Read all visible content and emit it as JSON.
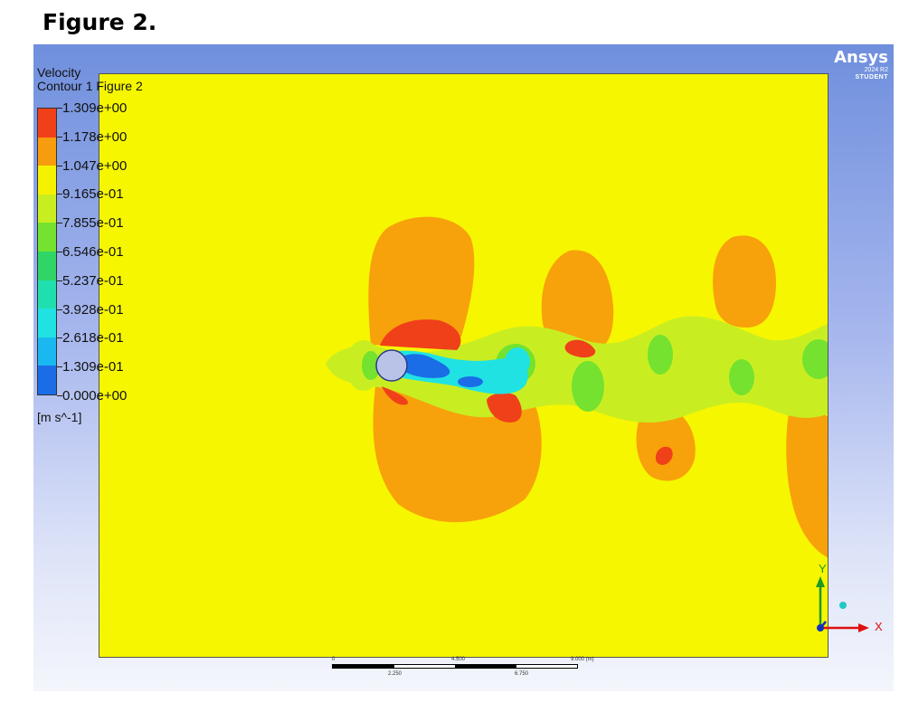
{
  "figure_title": "Figure 2.",
  "legend": {
    "title_line1": "Velocity",
    "title_line2": "Contour 1 Figure 2",
    "labels": [
      "1.309e+00",
      "1.178e+00",
      "1.047e+00",
      "9.165e-01",
      "7.855e-01",
      "6.546e-01",
      "5.237e-01",
      "3.928e-01",
      "2.618e-01",
      "1.309e-01",
      "0.000e+00"
    ],
    "colors": [
      "#f0401a",
      "#f79c0c",
      "#f5f200",
      "#c8ee22",
      "#74e22e",
      "#2fd567",
      "#20dfae",
      "#20e2e2",
      "#1ab8f0",
      "#1a6de6",
      "#0b2fd4"
    ],
    "units": "[m s^-1]"
  },
  "logo": {
    "brand": "Ansys",
    "version": "2024 R2",
    "edition": "STUDENT"
  },
  "scale": {
    "top_labels": [
      "0",
      "4.500",
      "9.000 (m)"
    ],
    "bottom_labels": [
      "2.250",
      "6.750"
    ]
  },
  "triad": {
    "x_label": "X",
    "y_label": "Y"
  },
  "colors": {
    "far_field": "#f6f600",
    "orange": "#f7a20a",
    "red": "#f0401a",
    "light_green": "#c8ee22",
    "green": "#74e22e",
    "cyan": "#20e2e2",
    "blue": "#1a6de6",
    "cylinder": "#b9c3e8"
  }
}
